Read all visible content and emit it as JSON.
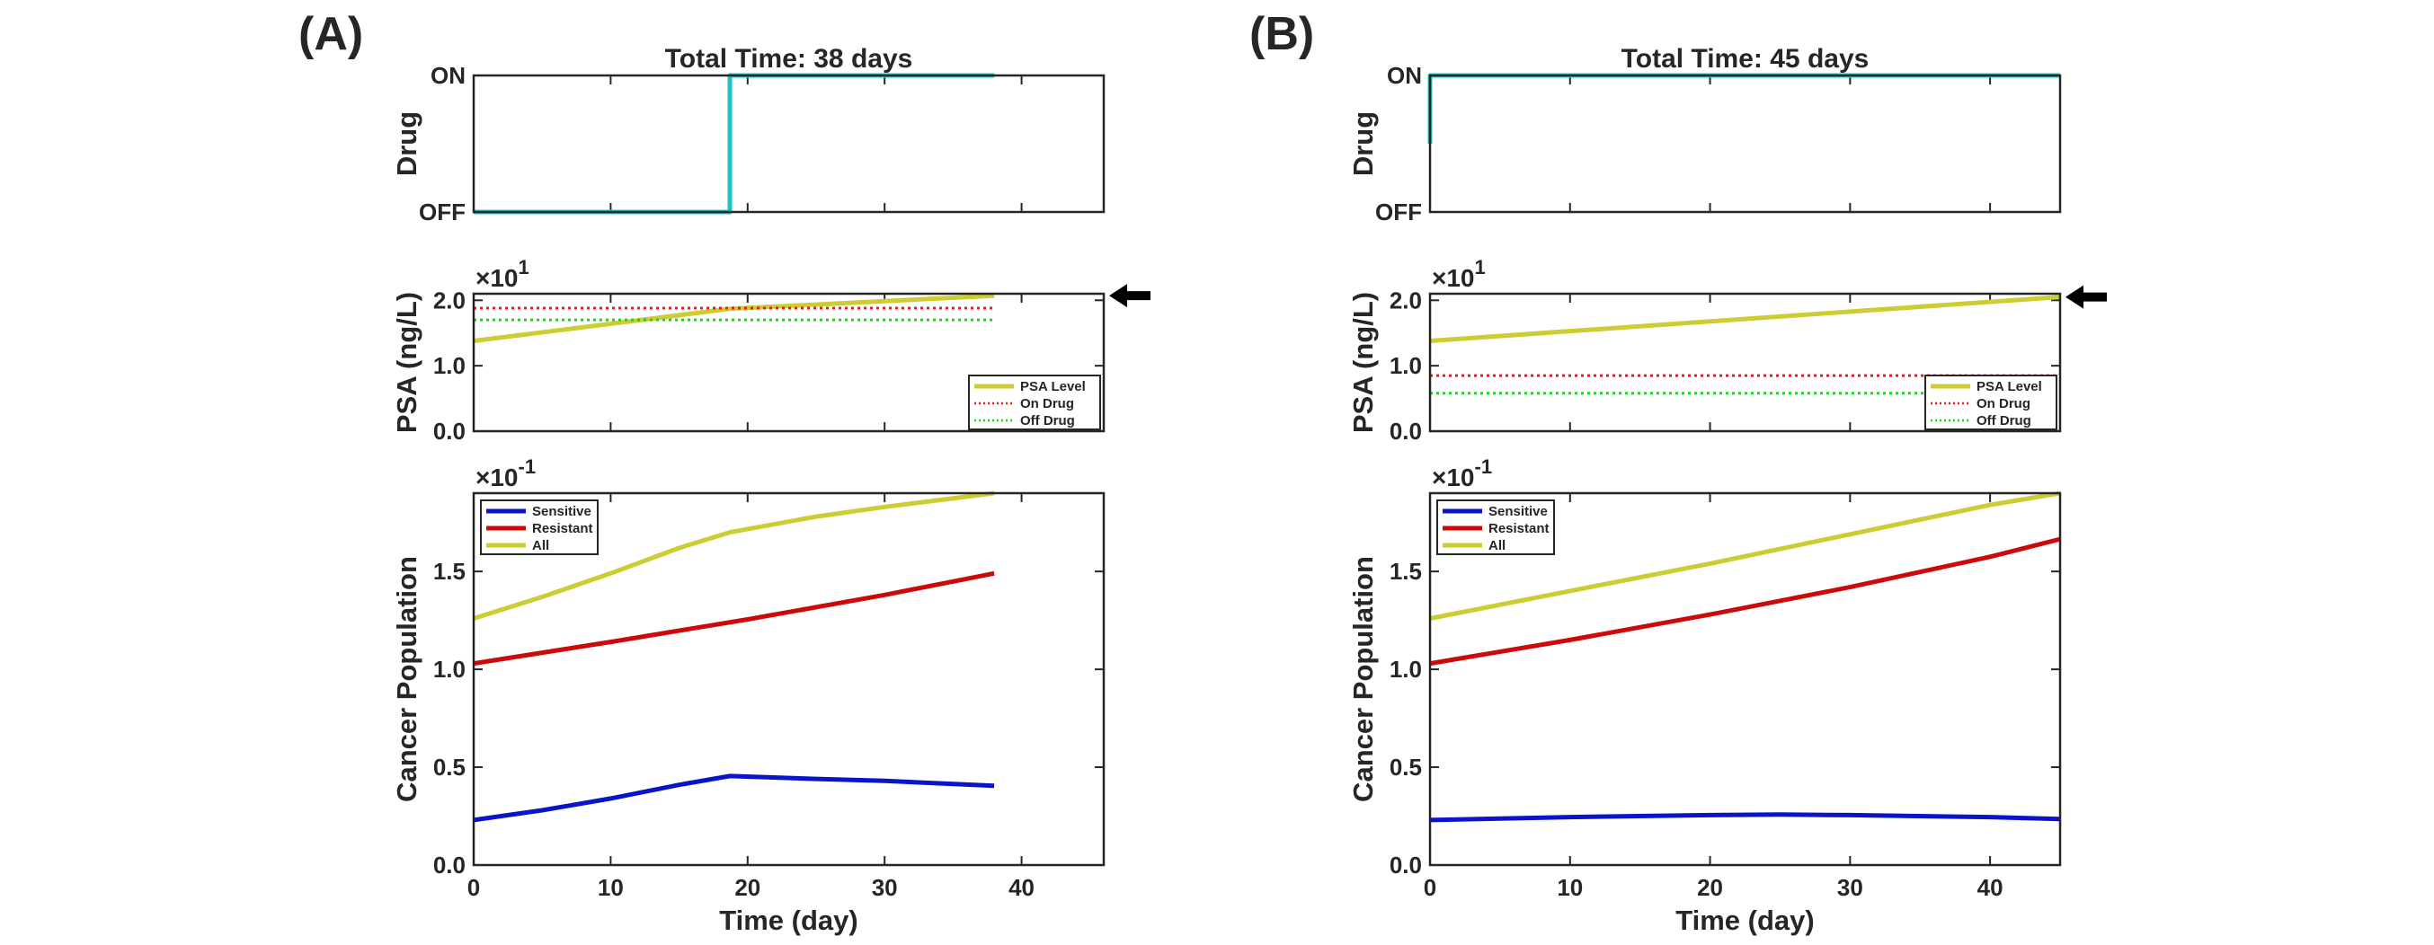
{
  "figure": {
    "panels": [
      {
        "id": "A",
        "label": "(A)",
        "title": "Total Time: 38 days"
      },
      {
        "id": "B",
        "label": "(B)",
        "title": "Total Time: 45 days"
      }
    ]
  },
  "colors": {
    "drug": "#1cc4c9",
    "psa": "#cccc33",
    "on_drug": "#e81c1c",
    "off_drug": "#1ad61a",
    "sensitive": "#0a14c8",
    "resistant": "#cc0a0a",
    "all": "#cccc33",
    "axis": "#262626",
    "arrow": "#000000"
  },
  "chart_data": [
    {
      "panel": "A",
      "type": "line",
      "subplot": "drug",
      "title": "Total Time: 38 days",
      "ylabel": "Drug",
      "ytick_labels": [
        "OFF",
        "ON"
      ],
      "xlim": [
        0,
        46
      ],
      "ylim": [
        0,
        1
      ],
      "series": [
        {
          "name": "Drug",
          "x": [
            0,
            18.7,
            18.7,
            38
          ],
          "y": [
            0,
            0,
            1,
            1
          ]
        }
      ]
    },
    {
      "panel": "A",
      "type": "line",
      "subplot": "psa",
      "ylabel": "PSA (ng/L)",
      "exponent": "1",
      "exponent_base": "×10",
      "ytick_labels": [
        "0.0",
        "1.0",
        "2.0"
      ],
      "xlim": [
        0,
        46
      ],
      "ylim": [
        0,
        2.1
      ],
      "legend_position": "bottom-right",
      "marker": "arrow at final PSA value",
      "series": [
        {
          "name": "PSA Level",
          "style": "solid",
          "x": [
            0,
            18.7,
            38
          ],
          "y": [
            1.38,
            1.87,
            2.07
          ]
        },
        {
          "name": "On Drug",
          "style": "dotted",
          "x": [
            0,
            38
          ],
          "y": [
            1.88,
            1.88
          ]
        },
        {
          "name": "Off Drug",
          "style": "dotted",
          "x": [
            0,
            38
          ],
          "y": [
            1.7,
            1.7
          ]
        }
      ]
    },
    {
      "panel": "A",
      "type": "line",
      "subplot": "population",
      "ylabel": "Cancer Population",
      "xlabel": "Time (day)",
      "exponent": "-1",
      "exponent_base": "×10",
      "ytick_labels": [
        "0.0",
        "0.5",
        "1.0",
        "1.5"
      ],
      "xtick_labels": [
        "0",
        "10",
        "20",
        "30",
        "40"
      ],
      "xlim": [
        0,
        46
      ],
      "ylim": [
        0,
        1.9
      ],
      "legend_position": "top-left",
      "series": [
        {
          "name": "Sensitive",
          "x": [
            0,
            5,
            10,
            15,
            18.7,
            25,
            30,
            38
          ],
          "y": [
            0.23,
            0.28,
            0.34,
            0.41,
            0.455,
            0.44,
            0.43,
            0.405
          ]
        },
        {
          "name": "Resistant",
          "x": [
            0,
            10,
            20,
            30,
            38
          ],
          "y": [
            1.03,
            1.14,
            1.255,
            1.38,
            1.49
          ]
        },
        {
          "name": "All",
          "x": [
            0,
            5,
            10,
            15,
            18.7,
            25,
            30,
            38
          ],
          "y": [
            1.26,
            1.37,
            1.49,
            1.62,
            1.7,
            1.78,
            1.83,
            1.9
          ]
        }
      ]
    },
    {
      "panel": "B",
      "type": "line",
      "subplot": "drug",
      "title": "Total Time: 45 days",
      "ylabel": "Drug",
      "ytick_labels": [
        "OFF",
        "ON"
      ],
      "xlim": [
        0,
        45
      ],
      "ylim": [
        0,
        1
      ],
      "series": [
        {
          "name": "Drug",
          "x": [
            0,
            0,
            45
          ],
          "y": [
            0.5,
            1,
            1
          ]
        }
      ]
    },
    {
      "panel": "B",
      "type": "line",
      "subplot": "psa",
      "ylabel": "PSA (ng/L)",
      "exponent": "1",
      "exponent_base": "×10",
      "ytick_labels": [
        "0.0",
        "1.0",
        "2.0"
      ],
      "xlim": [
        0,
        45
      ],
      "ylim": [
        0,
        2.1
      ],
      "legend_position": "bottom-right",
      "marker": "arrow at final PSA value",
      "series": [
        {
          "name": "PSA Level",
          "style": "solid",
          "x": [
            0,
            45
          ],
          "y": [
            1.38,
            2.05
          ]
        },
        {
          "name": "On Drug",
          "style": "dotted",
          "x": [
            0,
            45
          ],
          "y": [
            0.85,
            0.85
          ]
        },
        {
          "name": "Off Drug",
          "style": "dotted",
          "x": [
            0,
            45
          ],
          "y": [
            0.58,
            0.58
          ]
        }
      ]
    },
    {
      "panel": "B",
      "type": "line",
      "subplot": "population",
      "ylabel": "Cancer Population",
      "xlabel": "Time (day)",
      "exponent": "-1",
      "exponent_base": "×10",
      "ytick_labels": [
        "0.0",
        "0.5",
        "1.0",
        "1.5"
      ],
      "xtick_labels": [
        "0",
        "10",
        "20",
        "30",
        "40"
      ],
      "xlim": [
        0,
        45
      ],
      "ylim": [
        0,
        1.9
      ],
      "legend_position": "top-left",
      "series": [
        {
          "name": "Sensitive",
          "x": [
            0,
            10,
            20,
            25,
            30,
            40,
            45
          ],
          "y": [
            0.23,
            0.245,
            0.255,
            0.258,
            0.255,
            0.245,
            0.235
          ]
        },
        {
          "name": "Resistant",
          "x": [
            0,
            10,
            20,
            30,
            40,
            45
          ],
          "y": [
            1.03,
            1.15,
            1.28,
            1.42,
            1.575,
            1.665
          ]
        },
        {
          "name": "All",
          "x": [
            0,
            10,
            20,
            30,
            40,
            45
          ],
          "y": [
            1.26,
            1.4,
            1.54,
            1.69,
            1.84,
            1.9
          ]
        }
      ]
    }
  ]
}
